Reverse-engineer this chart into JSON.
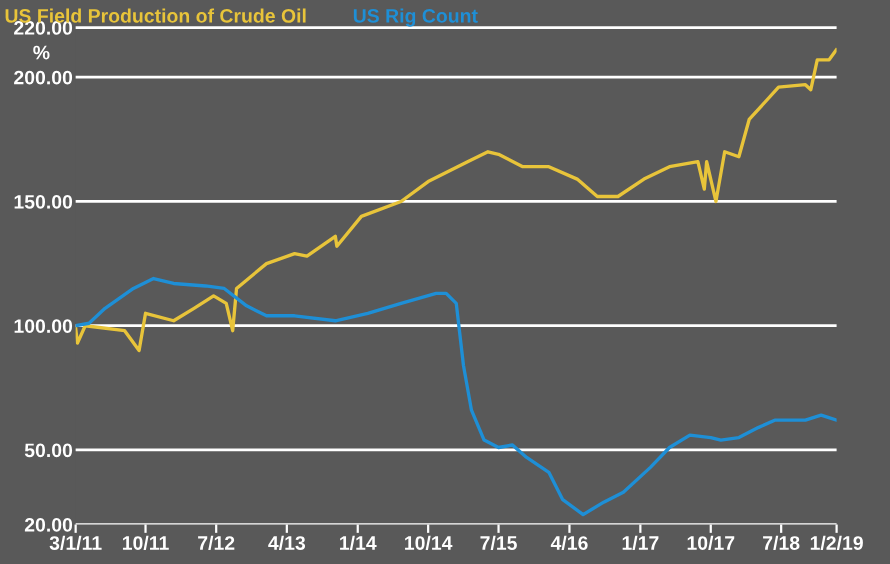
{
  "chart_data": {
    "type": "line",
    "ylabel": "%",
    "legend": "top",
    "grid": "y",
    "xlim": [
      "2011-01-03",
      "2019-02-01"
    ],
    "xticks": [
      {
        "value": "2011-01-03",
        "label": "3/1/11"
      },
      {
        "value": "2011-10-01",
        "label": "10/11"
      },
      {
        "value": "2012-07-01",
        "label": "7/12"
      },
      {
        "value": "2013-04-01",
        "label": "4/13"
      },
      {
        "value": "2014-01-01",
        "label": "1/14"
      },
      {
        "value": "2014-10-01",
        "label": "10/14"
      },
      {
        "value": "2015-07-01",
        "label": "7/15"
      },
      {
        "value": "2016-04-01",
        "label": "4/16"
      },
      {
        "value": "2017-01-01",
        "label": "1/17"
      },
      {
        "value": "2017-10-01",
        "label": "10/17"
      },
      {
        "value": "2018-07-01",
        "label": "7/18"
      },
      {
        "value": "2019-02-01",
        "label": "1/2/19"
      }
    ],
    "ylim": [
      20,
      222
    ],
    "yticks": [
      {
        "value": 20,
        "label": "20.00"
      },
      {
        "value": 50,
        "label": "50.00"
      },
      {
        "value": 100,
        "label": "100.00"
      },
      {
        "value": 150,
        "label": "150.00"
      },
      {
        "value": 200,
        "label": "200.00"
      },
      {
        "value": 220,
        "label": "220.00"
      }
    ],
    "series": [
      {
        "name": "US Field Production of Crude Oil",
        "color": "#e8c43a",
        "x": [
          "2011-01-03",
          "2011-01-10",
          "2011-02-09",
          "2011-07-12",
          "2011-09-06",
          "2011-10-01",
          "2012-01-18",
          "2012-04-06",
          "2012-06-21",
          "2012-08-09",
          "2012-09-03",
          "2012-09-18",
          "2013-01-12",
          "2013-05-01",
          "2013-06-18",
          "2013-10-06",
          "2013-10-12",
          "2014-01-15",
          "2014-06-18",
          "2014-10-01",
          "2015-03-03",
          "2015-05-21",
          "2015-07-01",
          "2015-10-03",
          "2016-01-12",
          "2016-05-01",
          "2016-07-18",
          "2016-10-06",
          "2017-01-15",
          "2017-04-24",
          "2017-08-12",
          "2017-09-06",
          "2017-09-15",
          "2017-10-21",
          "2017-11-24",
          "2018-01-18",
          "2018-02-27",
          "2018-06-21",
          "2018-10-03",
          "2018-10-24",
          "2018-11-18",
          "2019-01-03",
          "2019-01-31"
        ],
        "values": [
          99,
          93,
          100,
          98,
          90,
          105,
          102,
          107,
          112,
          109,
          98,
          115,
          125,
          129,
          128,
          136,
          132,
          144,
          150,
          158,
          166,
          170,
          169,
          164,
          164,
          159,
          152,
          152,
          159,
          164,
          166,
          155,
          166,
          150,
          170,
          168,
          183,
          196,
          197,
          195,
          207,
          207,
          211
        ]
      },
      {
        "name": "US Rig Count",
        "color": "#1e8fd6",
        "x": [
          "2011-01-03",
          "2011-02-24",
          "2011-04-27",
          "2011-08-15",
          "2011-11-01",
          "2012-01-18",
          "2012-05-21",
          "2012-08-01",
          "2012-10-27",
          "2013-01-12",
          "2013-05-01",
          "2013-10-06",
          "2014-02-09",
          "2014-06-18",
          "2014-11-01",
          "2014-12-10",
          "2015-01-18",
          "2015-02-15",
          "2015-03-18",
          "2015-05-06",
          "2015-07-01",
          "2015-08-24",
          "2015-10-18",
          "2016-01-12",
          "2016-03-06",
          "2016-05-24",
          "2016-08-12",
          "2016-10-27",
          "2017-02-09",
          "2017-04-24",
          "2017-07-12",
          "2017-10-01",
          "2017-11-09",
          "2018-01-18",
          "2018-04-03",
          "2018-06-06",
          "2018-08-01",
          "2018-10-03",
          "2018-12-03",
          "2019-01-31"
        ],
        "values": [
          100,
          101,
          107,
          115,
          119,
          117,
          116,
          115,
          108,
          104,
          104,
          102,
          105,
          109,
          113,
          113,
          109,
          84,
          66,
          54,
          51,
          52,
          47,
          41,
          30,
          24,
          29,
          33,
          43,
          51,
          56,
          55,
          54,
          55,
          59,
          62,
          62,
          62,
          64,
          62
        ]
      }
    ]
  }
}
